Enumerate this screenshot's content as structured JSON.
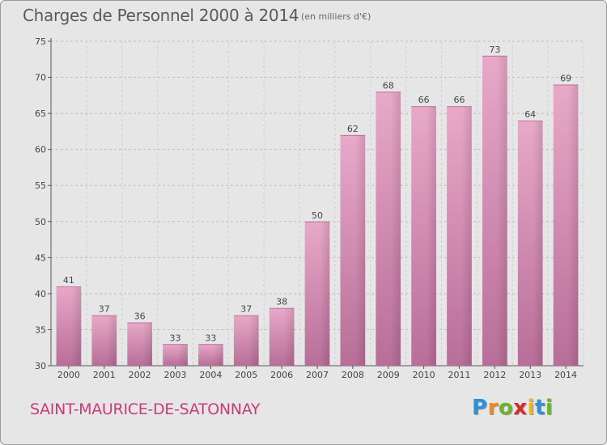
{
  "header": {
    "title": "Charges de Personnel 2000 à 2014",
    "subtitle": "(en milliers d'€)"
  },
  "footer": {
    "commune": "SAINT-MAURICE-DE-SATONNAY",
    "logo_letters": [
      "P",
      "r",
      "o",
      "x",
      "i",
      "t",
      "i"
    ],
    "logo_colors": [
      "#2f8fd8",
      "#f08a1c",
      "#6bb52a",
      "#d82b2b",
      "#f0b31c",
      "#2f8fd8",
      "#6bb52a"
    ]
  },
  "colors": {
    "bar": "#d98bb4",
    "bar_light": "#e8a9c9",
    "bar_dark": "#b5658f",
    "background": "#e6e6e6"
  },
  "chart_data": {
    "type": "bar",
    "categories": [
      "2000",
      "2001",
      "2002",
      "2003",
      "2004",
      "2005",
      "2006",
      "2007",
      "2008",
      "2009",
      "2010",
      "2011",
      "2012",
      "2013",
      "2014"
    ],
    "values": [
      41,
      37,
      36,
      33,
      33,
      37,
      38,
      50,
      62,
      68,
      66,
      66,
      73,
      64,
      69
    ],
    "ylim": [
      30,
      75
    ],
    "yticks": [
      30,
      35,
      40,
      45,
      50,
      55,
      60,
      65,
      70,
      75
    ],
    "grid": true
  }
}
